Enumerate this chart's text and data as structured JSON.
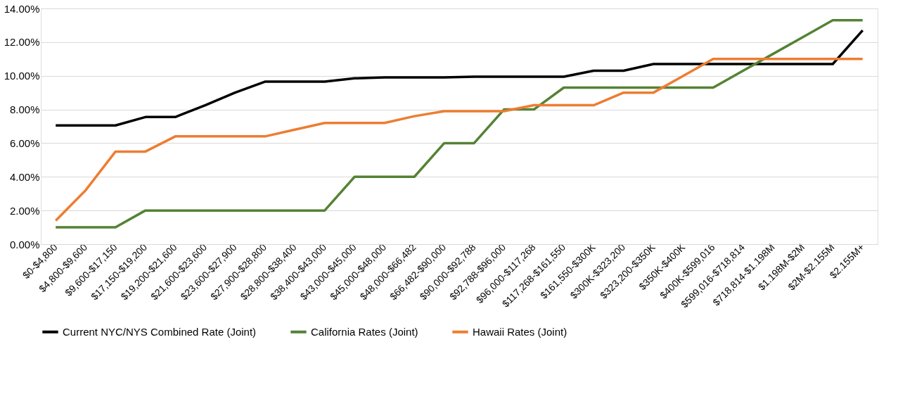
{
  "chart_data": {
    "type": "line",
    "categories": [
      "$0-$4,800",
      "$4,800-$9,600",
      "$9,600-$17,150",
      "$17,150-$19,200",
      "$19,200-$21,600",
      "$21,600-$23,600",
      "$23,600-$27,900",
      "$27,900-$28,800",
      "$28,800-$38,400",
      "$38,400-$43,000",
      "$43,000-$45,000",
      "$45,000-$48,000",
      "$48,000-$66,482",
      "$66,482-$90,000",
      "$90,000-$92,788",
      "$92,788-$96,000",
      "$96,000-$117,268",
      "$117,268-$161,550",
      "$161,550-$300K",
      "$300K-$323,200",
      "$323,200-$350K",
      "$350K-$400K",
      "$400K-$599,016",
      "$599,016-$718,814",
      "$718,814-$1.198M",
      "$1.198M-$2M",
      "$2M-$2.155M",
      "$2.155M+"
    ],
    "series": [
      {
        "name": "Current NYC/NYS Combined Rate (Joint)",
        "color": "#000000",
        "values": [
          7.05,
          7.05,
          7.05,
          7.55,
          7.55,
          8.25,
          9.0,
          9.65,
          9.65,
          9.65,
          9.85,
          9.9,
          9.9,
          9.9,
          9.95,
          9.95,
          9.95,
          9.95,
          10.3,
          10.3,
          10.7,
          10.7,
          10.7,
          10.7,
          10.7,
          10.7,
          10.7,
          12.7
        ]
      },
      {
        "name": "California Rates (Joint)",
        "color": "#548235",
        "values": [
          1,
          1,
          1,
          2,
          2,
          2,
          2,
          2,
          2,
          2,
          4,
          4,
          4,
          6,
          6,
          8,
          8,
          9.3,
          9.3,
          9.3,
          9.3,
          9.3,
          9.3,
          10.3,
          11.3,
          12.3,
          13.3,
          13.3
        ]
      },
      {
        "name": "Hawaii Rates (Joint)",
        "color": "#ed7d31",
        "values": [
          1.4,
          3.2,
          5.5,
          5.5,
          6.4,
          6.4,
          6.4,
          6.4,
          6.8,
          7.2,
          7.2,
          7.2,
          7.6,
          7.9,
          7.9,
          7.9,
          8.25,
          8.25,
          8.25,
          9.0,
          9.0,
          10.0,
          11.0,
          11.0,
          11.0,
          11.0,
          11.0,
          11.0
        ]
      }
    ],
    "ylim": [
      0,
      14
    ],
    "yticks": [
      {
        "value": 0,
        "label": "0.00%"
      },
      {
        "value": 2,
        "label": "2.00%"
      },
      {
        "value": 4,
        "label": "4.00%"
      },
      {
        "value": 6,
        "label": "6.00%"
      },
      {
        "value": 8,
        "label": "8.00%"
      },
      {
        "value": 10,
        "label": "10.00%"
      },
      {
        "value": 12,
        "label": "12.00%"
      },
      {
        "value": 14,
        "label": "14.00%"
      }
    ],
    "grid": "y",
    "legend": "bottom",
    "marker": "none",
    "line_style": "solid"
  }
}
